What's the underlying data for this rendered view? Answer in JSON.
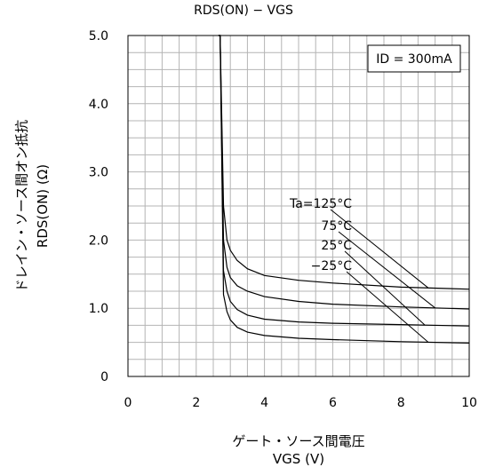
{
  "chart_data": {
    "type": "line",
    "title": "RDS(ON) − VGS",
    "xlabel_line1": "ゲート・ソース間電圧",
    "xlabel_line2": "VGS (V)",
    "ylabel_line1": "ドレイン・ソース間オン抵抗",
    "ylabel_line2": "RDS(ON) (Ω)",
    "xlim": [
      0,
      10
    ],
    "ylim": [
      0,
      5
    ],
    "x_ticks": [
      "0",
      "2",
      "4",
      "6",
      "8",
      "10"
    ],
    "y_ticks": [
      "0",
      "1.0",
      "2.0",
      "3.0",
      "4.0",
      "5.0"
    ],
    "grid": true,
    "condition_box": "ID = 300mA",
    "series": [
      {
        "name": "Ta=125°C",
        "x": [
          2.65,
          2.7,
          2.8,
          2.9,
          3.0,
          3.2,
          3.5,
          4.0,
          5.0,
          6.0,
          8.0,
          10.0
        ],
        "y": [
          5.0,
          5.0,
          2.5,
          2.0,
          1.85,
          1.7,
          1.58,
          1.48,
          1.41,
          1.37,
          1.31,
          1.28
        ]
      },
      {
        "name": "75°C",
        "x": [
          2.65,
          2.7,
          2.8,
          2.9,
          3.0,
          3.2,
          3.5,
          4.0,
          5.0,
          6.0,
          8.0,
          10.0
        ],
        "y": [
          5.0,
          5.0,
          2.0,
          1.6,
          1.45,
          1.33,
          1.25,
          1.17,
          1.1,
          1.06,
          1.02,
          0.99
        ]
      },
      {
        "name": "25°C",
        "x": [
          2.65,
          2.7,
          2.8,
          2.9,
          3.0,
          3.2,
          3.5,
          4.0,
          5.0,
          6.0,
          8.0,
          10.0
        ],
        "y": [
          5.0,
          5.0,
          1.55,
          1.25,
          1.1,
          0.98,
          0.9,
          0.84,
          0.8,
          0.78,
          0.76,
          0.74
        ]
      },
      {
        "name": "−25°C",
        "x": [
          2.65,
          2.7,
          2.8,
          2.9,
          3.0,
          3.2,
          3.5,
          4.0,
          5.0,
          6.0,
          8.0,
          10.0
        ],
        "y": [
          5.0,
          5.0,
          1.2,
          0.95,
          0.83,
          0.72,
          0.65,
          0.6,
          0.56,
          0.54,
          0.51,
          0.49
        ]
      }
    ]
  }
}
